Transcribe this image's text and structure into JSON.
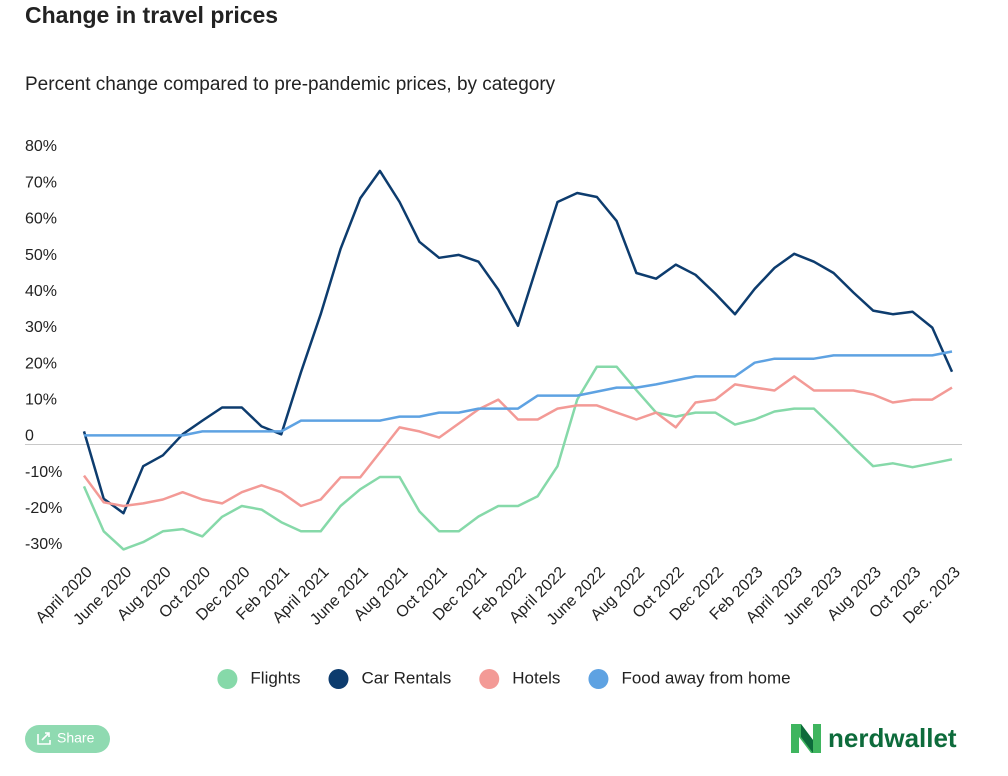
{
  "chart_data": {
    "type": "line",
    "title": "Change in travel prices",
    "subtitle": "Percent change compared to pre-pandemic prices, by category",
    "categories": [
      "April 2020",
      null,
      "June 2020",
      null,
      "Aug 2020",
      null,
      "Oct 2020",
      null,
      "Dec 2020",
      null,
      "Feb 2021",
      null,
      "April 2021",
      null,
      "June 2021",
      null,
      "Aug 2021",
      null,
      "Oct 2021",
      null,
      "Dec 2021",
      null,
      "Feb 2022",
      null,
      "April 2022",
      null,
      "June 2022",
      null,
      "Aug 2022",
      null,
      "Oct 2022",
      null,
      "Dec 2022",
      null,
      "Feb 2023",
      null,
      "April 2023",
      null,
      "June 2023",
      null,
      "Aug 2023",
      null,
      "Oct 2023",
      null,
      "Dec. 2023"
    ],
    "series": [
      {
        "name": "Flights",
        "color": "#86d9a9",
        "values": [
          -11.6,
          -24,
          -29,
          -27,
          -24,
          -23.4,
          -25.4,
          -20,
          -17,
          -18,
          -21.5,
          -24,
          -24,
          -17,
          -12.4,
          -9,
          -9,
          -18.5,
          -24,
          -24,
          -19.9,
          -17,
          -17,
          -14.3,
          -6,
          12.4,
          21.5,
          21.5,
          15,
          8.8,
          7.7,
          8.8,
          8.8,
          5.5,
          6.9,
          9.1,
          9.9,
          9.9,
          4.7,
          -0.8,
          -6,
          -5.2,
          -6.3,
          -5.2,
          -4.1
        ]
      },
      {
        "name": "Car Rentals",
        "color": "#0d3c6e",
        "values": [
          3.6,
          -15,
          -19,
          -6,
          -3,
          2.8,
          6.6,
          10.2,
          10.2,
          5,
          2.8,
          20,
          36,
          54,
          68,
          75.6,
          67,
          56,
          51.6,
          52.4,
          50.5,
          42.8,
          32.8,
          50,
          67,
          69.5,
          68.4,
          61.8,
          47.4,
          45.8,
          49.7,
          46.9,
          41.7,
          36,
          43,
          48.8,
          52.7,
          50.5,
          47.4,
          42,
          37,
          36,
          36.7,
          32.3,
          20.1
        ]
      },
      {
        "name": "Hotels",
        "color": "#f39a96",
        "values": [
          -8.6,
          -16,
          -17,
          -16.3,
          -15.2,
          -13.2,
          -15.2,
          -16.3,
          -13.2,
          -11.3,
          -13.2,
          -17,
          -15.2,
          -9.1,
          -9.1,
          -2.2,
          4.7,
          3.6,
          1.9,
          5.8,
          9.7,
          12.4,
          6.9,
          6.9,
          9.9,
          10.8,
          10.8,
          8.8,
          6.9,
          8.8,
          4.7,
          11.6,
          12.4,
          16.6,
          15.7,
          14.9,
          18.8,
          14.9,
          14.9,
          14.9,
          13.8,
          11.6,
          12.4,
          12.4,
          15.7
        ]
      },
      {
        "name": "Food away from home",
        "color": "#5ea2e2",
        "values": [
          2.5,
          2.5,
          2.5,
          2.5,
          2.5,
          2.5,
          3.6,
          3.6,
          3.6,
          3.6,
          3.6,
          6.6,
          6.6,
          6.6,
          6.6,
          6.6,
          7.7,
          7.7,
          8.8,
          8.8,
          9.9,
          9.9,
          9.9,
          13.5,
          13.5,
          13.5,
          14.6,
          15.7,
          15.7,
          16.6,
          17.7,
          18.8,
          18.8,
          18.8,
          22.6,
          23.7,
          23.7,
          23.7,
          24.6,
          24.6,
          24.6,
          24.6,
          24.6,
          24.6,
          25.7
        ]
      }
    ],
    "ylim": [
      -30,
      80
    ],
    "yticks": [
      {
        "value": 80,
        "label": "80%"
      },
      {
        "value": 70,
        "label": "70%"
      },
      {
        "value": 60,
        "label": "60%"
      },
      {
        "value": 50,
        "label": "50%"
      },
      {
        "value": 40,
        "label": "40%"
      },
      {
        "value": 30,
        "label": "30%"
      },
      {
        "value": 20,
        "label": "20%"
      },
      {
        "value": 10,
        "label": "10%"
      },
      0,
      {
        "value": -10,
        "label": "-10%"
      },
      {
        "value": -20,
        "label": "-20%"
      },
      {
        "value": -30,
        "label": "-30%"
      }
    ],
    "grid": false,
    "legend": "bottom"
  },
  "share_button": "Share",
  "logo": "nerdwallet"
}
